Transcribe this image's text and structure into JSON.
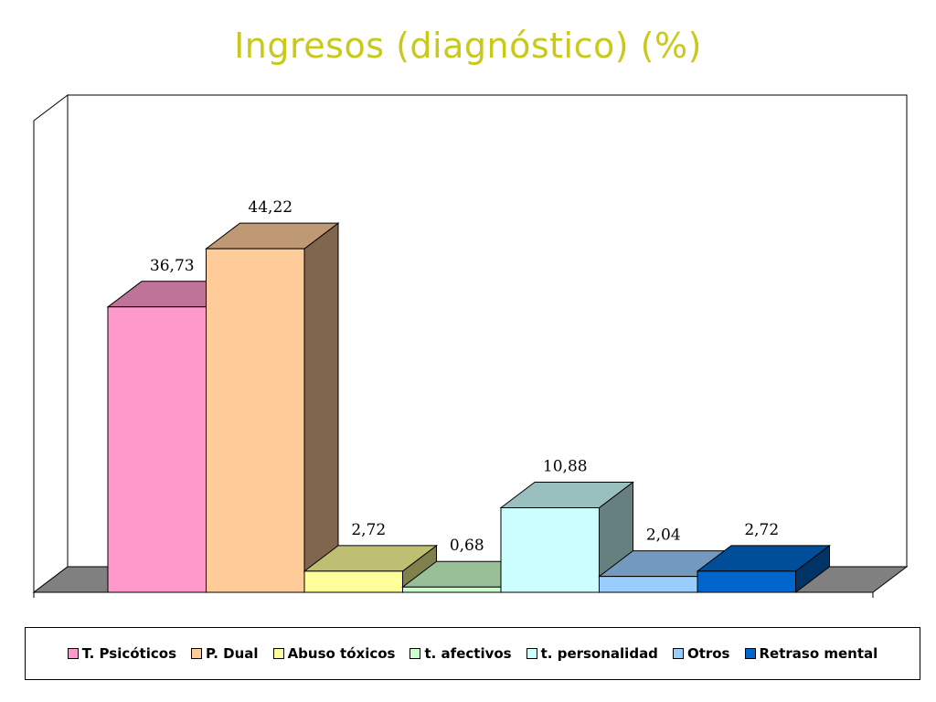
{
  "chart_data": {
    "type": "bar",
    "title": "Ingresos (diagnóstico) (%)",
    "categories": [
      "T. Psicóticos",
      "P. Dual",
      "Abuso tóxicos",
      "t. afectivos",
      "t. personalidad",
      "Otros",
      "Retraso mental"
    ],
    "values": [
      36.73,
      44.22,
      2.72,
      0.68,
      10.88,
      2.04,
      2.72
    ],
    "value_labels": [
      "36,73",
      "44,22",
      "2,72",
      "0,68",
      "10,88",
      "2,04",
      "2,72"
    ],
    "colors": [
      "#ff99cc",
      "#ffcc99",
      "#ffff99",
      "#ccffcc",
      "#ccffff",
      "#99ccff",
      "#0066cc"
    ],
    "ylim": [
      0,
      50
    ],
    "style": "3d-column",
    "grid": false,
    "legend_position": "bottom",
    "title_color": "#c9c91a"
  }
}
